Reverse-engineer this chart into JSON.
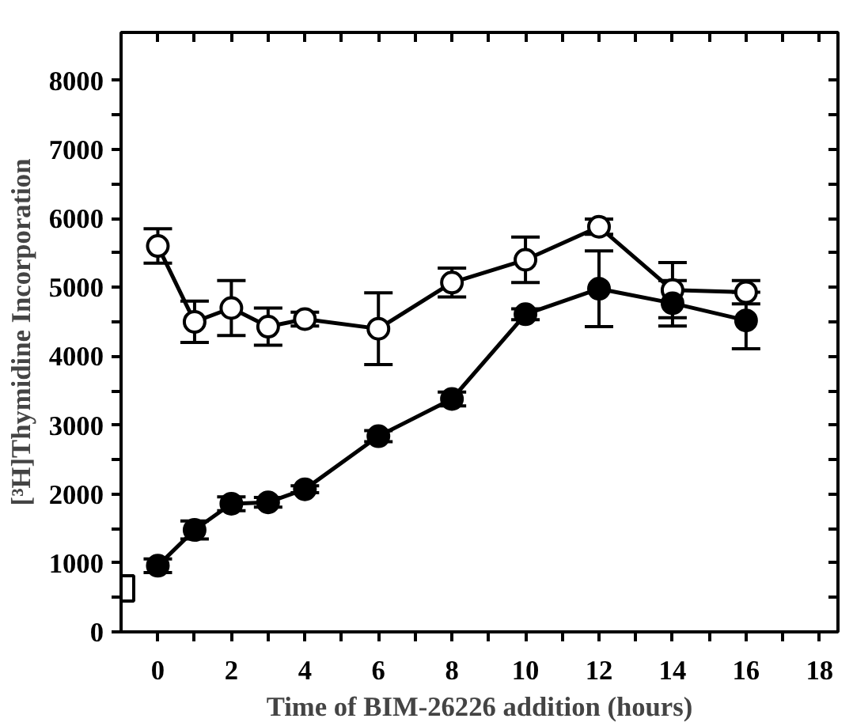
{
  "chart_data": {
    "type": "line",
    "xlabel": "Time of BIM-26226 addition (hours)",
    "ylabel": "[³H]Thymidine Incorporation",
    "xlim": [
      -1,
      18.5
    ],
    "ylim": [
      0,
      8700
    ],
    "xticks": [
      0,
      {
        "value": 1,
        "label": null
      },
      2,
      {
        "value": 3,
        "label": null
      },
      4,
      {
        "value": 5,
        "label": null
      },
      6,
      {
        "value": 7,
        "label": null
      },
      8,
      {
        "value": 9,
        "label": null
      },
      10,
      {
        "value": 11,
        "label": null
      },
      12,
      {
        "value": 13,
        "label": null
      },
      14,
      {
        "value": 15,
        "label": null
      },
      16,
      {
        "value": 17,
        "label": null
      },
      18
    ],
    "yticks": [
      0,
      {
        "value": 500,
        "label": null
      },
      1000,
      {
        "value": 1500,
        "label": null
      },
      2000,
      {
        "value": 2500,
        "label": null
      },
      3000,
      {
        "value": 3500,
        "label": null
      },
      4000,
      {
        "value": 4500,
        "label": null
      },
      5000,
      {
        "value": 5500,
        "label": null
      },
      6000,
      {
        "value": 6500,
        "label": null
      },
      7000,
      {
        "value": 7500,
        "label": null
      },
      8000
    ],
    "grid": false,
    "marker": "circle",
    "line_style": "solid",
    "series": [
      {
        "color": "#ffffff",
        "x": [
          0,
          1,
          2,
          3,
          4,
          6,
          8,
          10,
          12,
          14,
          16
        ],
        "values": [
          5600,
          4500,
          4700,
          4430,
          4540,
          4400,
          5070,
          5400,
          5880,
          4960,
          4930
        ],
        "errors": [
          250,
          300,
          400,
          270,
          100,
          520,
          210,
          330,
          110,
          400,
          170
        ]
      },
      {
        "color": "#000000",
        "x": [
          0,
          1,
          2,
          3,
          4,
          6,
          8,
          10,
          12,
          14,
          16
        ],
        "values": [
          960,
          1480,
          1860,
          1880,
          2070,
          2840,
          3380,
          4610,
          4980,
          4770,
          4520
        ],
        "errors": [
          100,
          130,
          100,
          70,
          50,
          80,
          100,
          80,
          550,
          330,
          410
        ]
      },
      {
        "type": "scatter",
        "marker": "square",
        "color": "#ffffff",
        "x": [
          -1
        ],
        "values": [
          630
        ]
      }
    ]
  }
}
